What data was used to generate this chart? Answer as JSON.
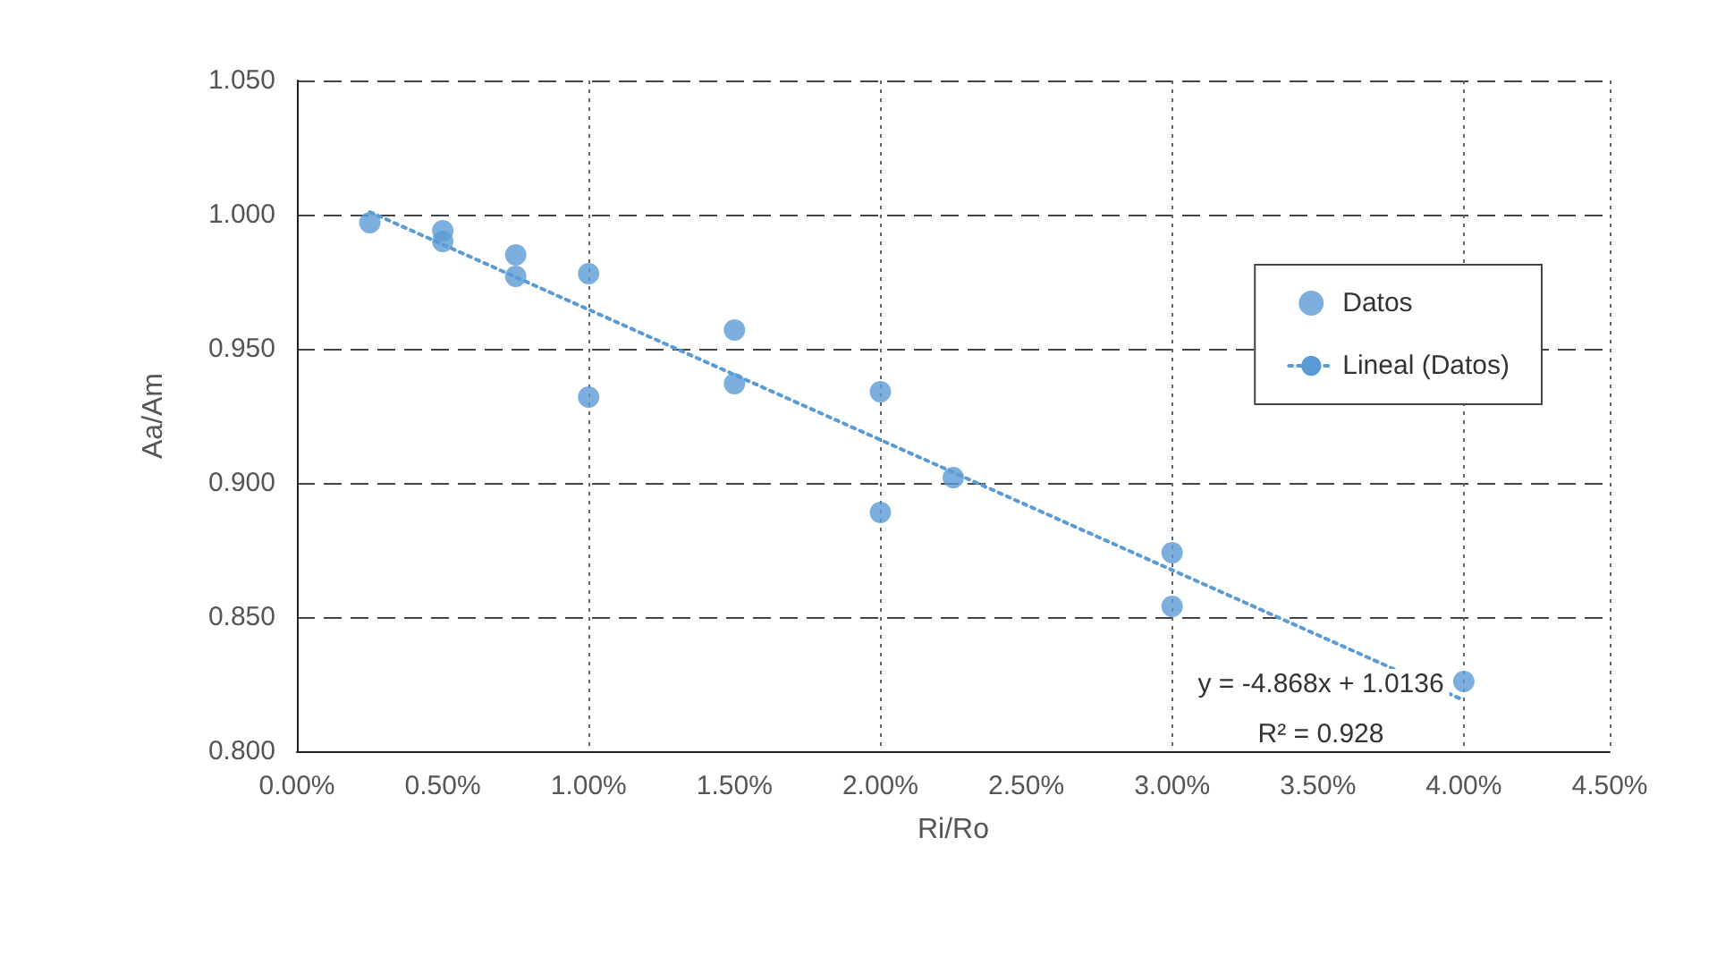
{
  "chart_data": {
    "type": "scatter",
    "xlabel": "Ri/Ro",
    "ylabel": "Aa/Am",
    "xlim": [
      0,
      4.5
    ],
    "ylim": [
      0.8,
      1.05
    ],
    "xticks": [
      {
        "value": 0,
        "label": "0.00%"
      },
      {
        "value": 0.5,
        "label": "0.50%"
      },
      {
        "value": 1,
        "label": "1.00%"
      },
      {
        "value": 1.5,
        "label": "1.50%"
      },
      {
        "value": 2,
        "label": "2.00%"
      },
      {
        "value": 2.5,
        "label": "2.50%"
      },
      {
        "value": 3,
        "label": "3.00%"
      },
      {
        "value": 3.5,
        "label": "3.50%"
      },
      {
        "value": 4,
        "label": "4.00%"
      },
      {
        "value": 4.5,
        "label": "4.50%"
      }
    ],
    "yticks": [
      {
        "value": 0.8,
        "label": "0.800"
      },
      {
        "value": 0.85,
        "label": "0.850"
      },
      {
        "value": 0.9,
        "label": "0.900"
      },
      {
        "value": 0.95,
        "label": "0.950"
      },
      {
        "value": 1,
        "label": "1.000"
      },
      {
        "value": 1.05,
        "label": "1.050"
      }
    ],
    "grid": true,
    "legend": "right",
    "marker": "circle",
    "series": [
      {
        "name": "Datos",
        "color": "#5b9bd5",
        "x": [
          0.25,
          0.5,
          0.5,
          0.75,
          0.75,
          1,
          1,
          1.5,
          1.5,
          2,
          2,
          2.25,
          3,
          3,
          4
        ],
        "values": [
          0.997,
          0.994,
          0.99,
          0.985,
          0.977,
          0.978,
          0.932,
          0.957,
          0.937,
          0.934,
          0.889,
          0.902,
          0.874,
          0.854,
          0.826
        ]
      },
      {
        "name": "Lineal (Datos)",
        "type": "line",
        "color": "#5b9bd5",
        "line_style": "dotted",
        "marker": "none",
        "x": [
          0.25,
          4
        ],
        "values": [
          1.001,
          0.819
        ]
      }
    ],
    "annotations": [
      "y = -4.868x + 1.0136",
      "R² = 0.928"
    ]
  }
}
